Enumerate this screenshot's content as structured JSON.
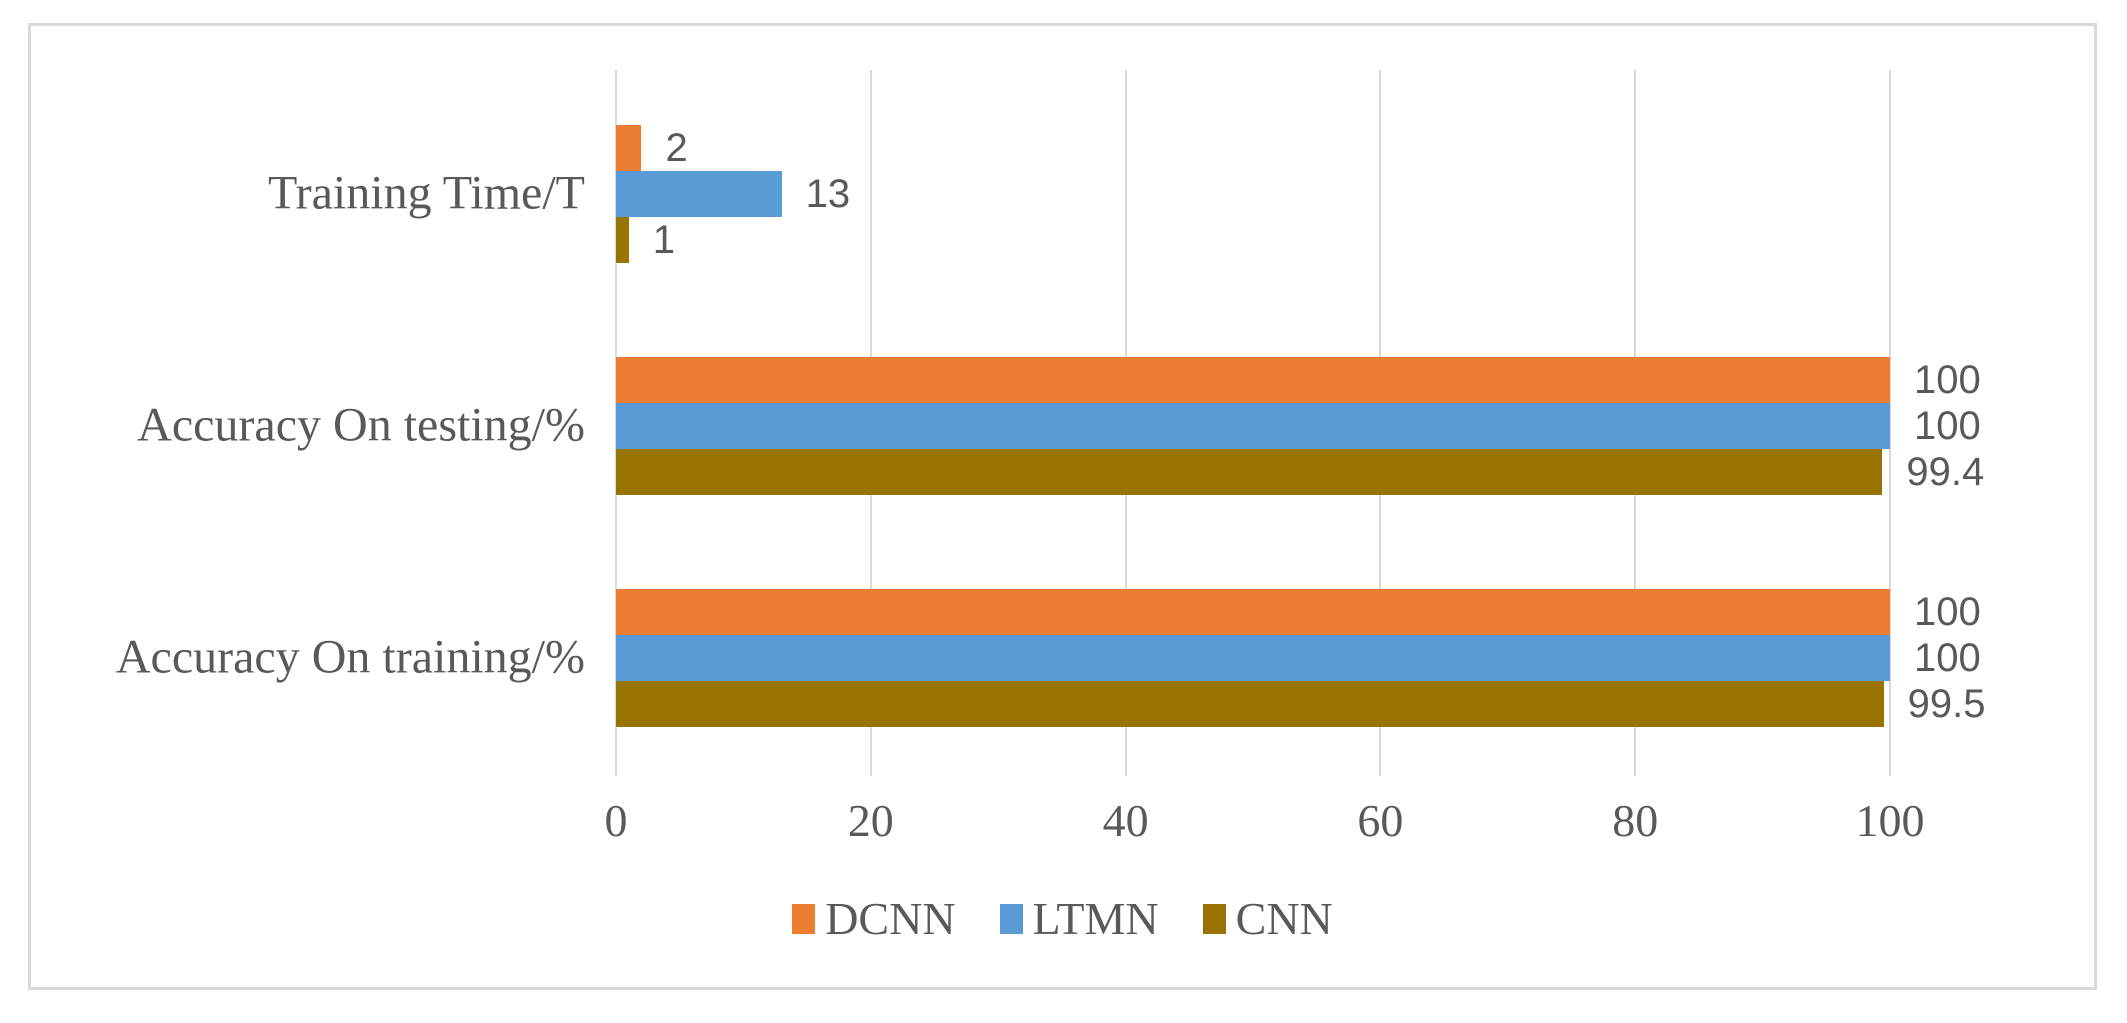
{
  "figure": {
    "background": "#ffffff",
    "border_color": "#d9d9d9"
  },
  "chart_data": {
    "type": "bar",
    "orientation": "horizontal",
    "title": "",
    "categories": [
      "Training Time/T",
      "Accuracy On testing/%",
      "Accuracy On training/%"
    ],
    "series": [
      {
        "name": "DCNN",
        "color": "#ED7D31",
        "values": [
          2,
          100,
          100
        ]
      },
      {
        "name": "LTMN",
        "color": "#5B9BD5",
        "values": [
          13,
          100,
          100
        ]
      },
      {
        "name": "CNN",
        "color": "#997300",
        "values": [
          1,
          99.4,
          99.5
        ]
      }
    ],
    "x_axis": {
      "min": 0,
      "max": 100,
      "tick_values": [
        0,
        20,
        40,
        60,
        80,
        100
      ],
      "tick_labels": [
        "0",
        "20",
        "40",
        "60",
        "80",
        "100"
      ]
    },
    "grid": "vertical-on",
    "gridline_color": "#d9d9d9",
    "text_color": "#595959",
    "data_labels_shown": true,
    "legend": {
      "position": "bottom",
      "entries": [
        "DCNN",
        "LTMN",
        "CNN"
      ]
    }
  }
}
